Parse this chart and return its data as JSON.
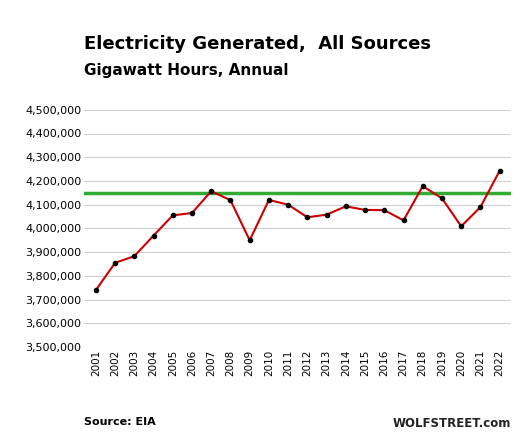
{
  "title_line1": "Electricity Generated,  All Sources",
  "title_line2": "Gigawatt Hours, Annual",
  "years": [
    2001,
    2002,
    2003,
    2004,
    2005,
    2006,
    2007,
    2008,
    2009,
    2010,
    2011,
    2012,
    2013,
    2014,
    2015,
    2016,
    2017,
    2018,
    2019,
    2020,
    2021,
    2022
  ],
  "values": [
    3740000,
    3855000,
    3883000,
    3970000,
    4055000,
    4065000,
    4157000,
    4119000,
    3950000,
    4120000,
    4100000,
    4047000,
    4058000,
    4093000,
    4078000,
    4077000,
    4034000,
    4178000,
    4127000,
    4009000,
    4090000,
    4243000
  ],
  "hline_value": 4150000,
  "line_color": "#cc0000",
  "hline_color": "#33aa33",
  "marker_color": "#000000",
  "ylim_min": 3500000,
  "ylim_max": 4550000,
  "ytick_step": 100000,
  "background_color": "#ffffff",
  "grid_color": "#cccccc",
  "source_text": "Source: EIA",
  "watermark_text": "WOLFSTREET.com",
  "title_fontsize": 13,
  "subtitle_fontsize": 11
}
